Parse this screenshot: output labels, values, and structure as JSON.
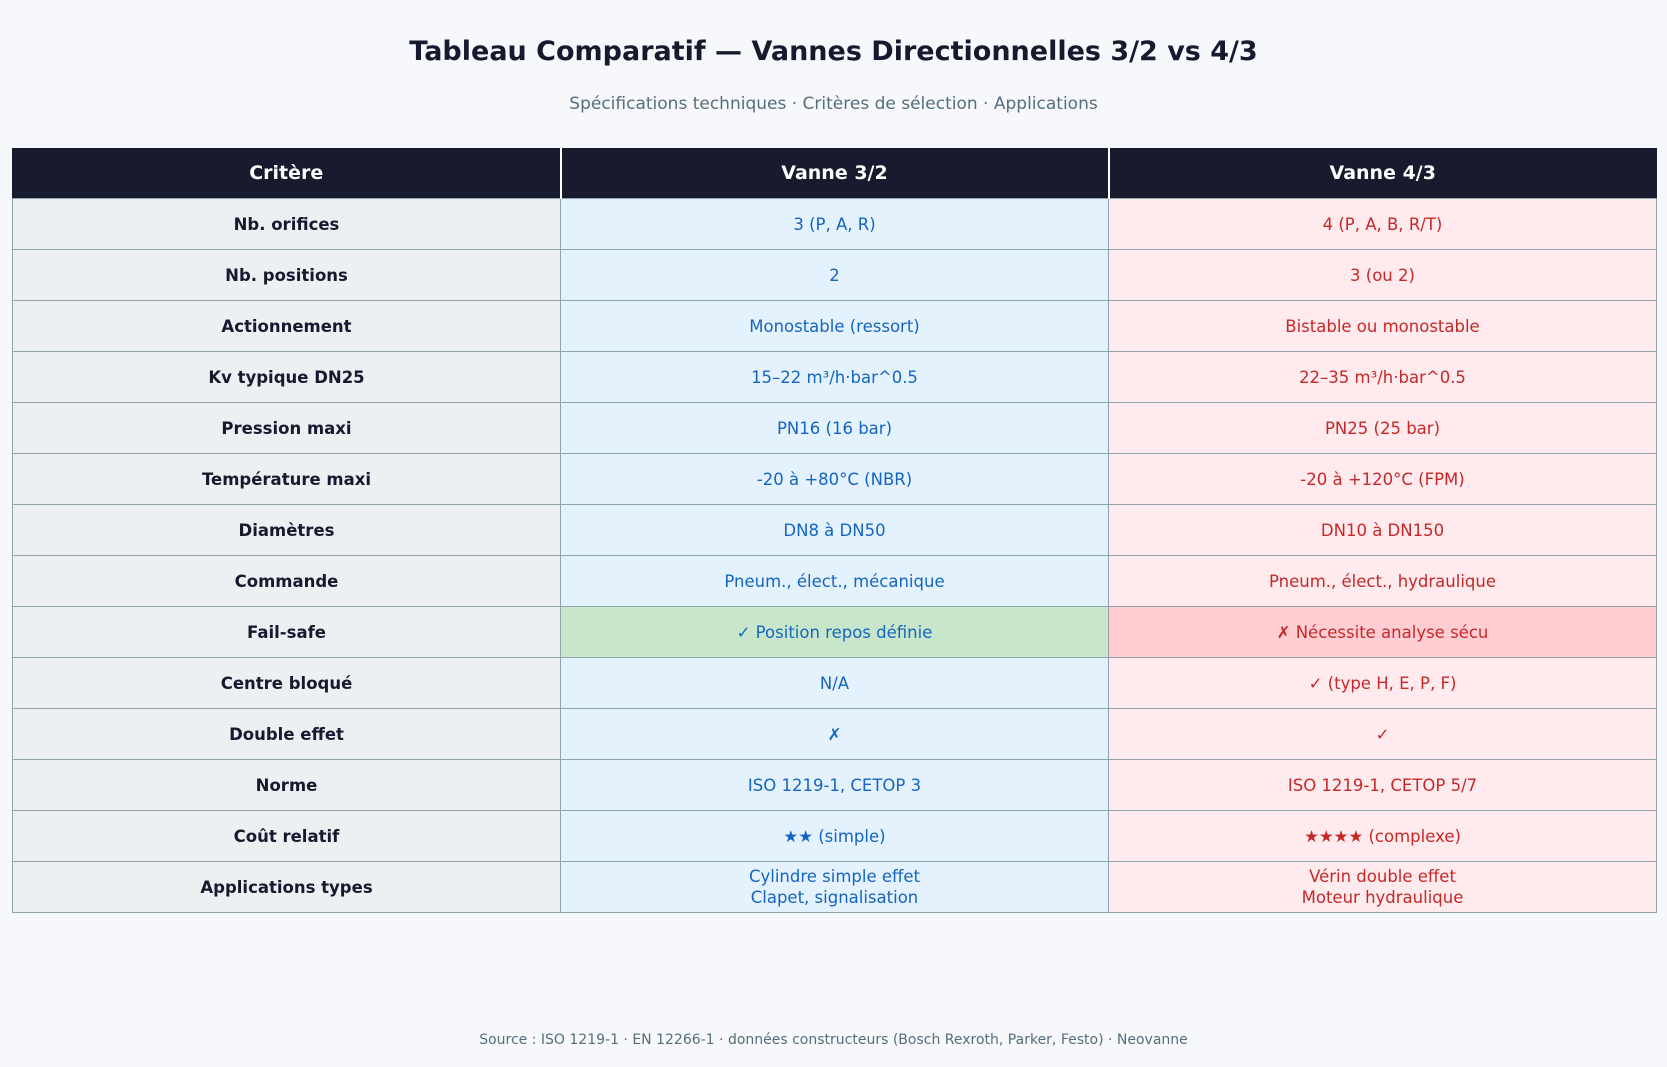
{
  "title": "Tableau Comparatif — Vannes Directionnelles 3/2 vs 4/3",
  "subtitle": "Spécifications techniques · Critères de sélection · Applications",
  "colors": {
    "header_bg": "#181a2e",
    "criterion_bg": "#ecf0f3",
    "v32_bg": "#e3f2fd",
    "v32_text": "#1565c0",
    "v43_bg": "#ffebee",
    "v43_text": "#c62828",
    "highlight_good": "#c8e6c9",
    "highlight_bad": "#ffcdd2"
  },
  "chart_data": {
    "type": "table",
    "columns": [
      "Critère",
      "Vanne 3/2",
      "Vanne 4/3"
    ],
    "rows": [
      {
        "criterion": "Nb. orifices",
        "v32": "3 (P, A, R)",
        "v43": "4 (P, A, B, R/T)"
      },
      {
        "criterion": "Nb. positions",
        "v32": "2",
        "v43": "3 (ou 2)"
      },
      {
        "criterion": "Actionnement",
        "v32": "Monostable (ressort)",
        "v43": "Bistable ou monostable"
      },
      {
        "criterion": "Kv typique DN25",
        "v32": "15–22 m³/h·bar^0.5",
        "v43": "22–35 m³/h·bar^0.5"
      },
      {
        "criterion": "Pression maxi",
        "v32": "PN16 (16 bar)",
        "v43": "PN25 (25 bar)"
      },
      {
        "criterion": "Température maxi",
        "v32": "-20 à +80°C (NBR)",
        "v43": "-20 à +120°C (FPM)"
      },
      {
        "criterion": "Diamètres",
        "v32": "DN8 à DN50",
        "v43": "DN10 à DN150"
      },
      {
        "criterion": "Commande",
        "v32": "Pneum., élect., mécanique",
        "v43": "Pneum., élect., hydraulique"
      },
      {
        "criterion": "Fail-safe",
        "v32": "✓ Position repos définie",
        "v43": "✗ Nécessite analyse sécu",
        "highlight": true
      },
      {
        "criterion": "Centre bloqué",
        "v32": "N/A",
        "v43": "✓ (type H, E, P, F)"
      },
      {
        "criterion": "Double effet",
        "v32": "✗",
        "v43": "✓"
      },
      {
        "criterion": "Norme",
        "v32": "ISO 1219-1, CETOP 3",
        "v43": "ISO 1219-1, CETOP 5/7"
      },
      {
        "criterion": "Coût relatif",
        "v32": "★★ (simple)",
        "v43": "★★★★ (complexe)"
      },
      {
        "criterion": "Applications types",
        "v32": [
          "Cylindre simple effet",
          "Clapet, signalisation"
        ],
        "v43": [
          "Vérin double effet",
          "Moteur hydraulique"
        ]
      }
    ]
  },
  "source": "Source : ISO 1219-1 · EN 12266-1 · données constructeurs (Bosch Rexroth, Parker, Festo) · Neovanne"
}
